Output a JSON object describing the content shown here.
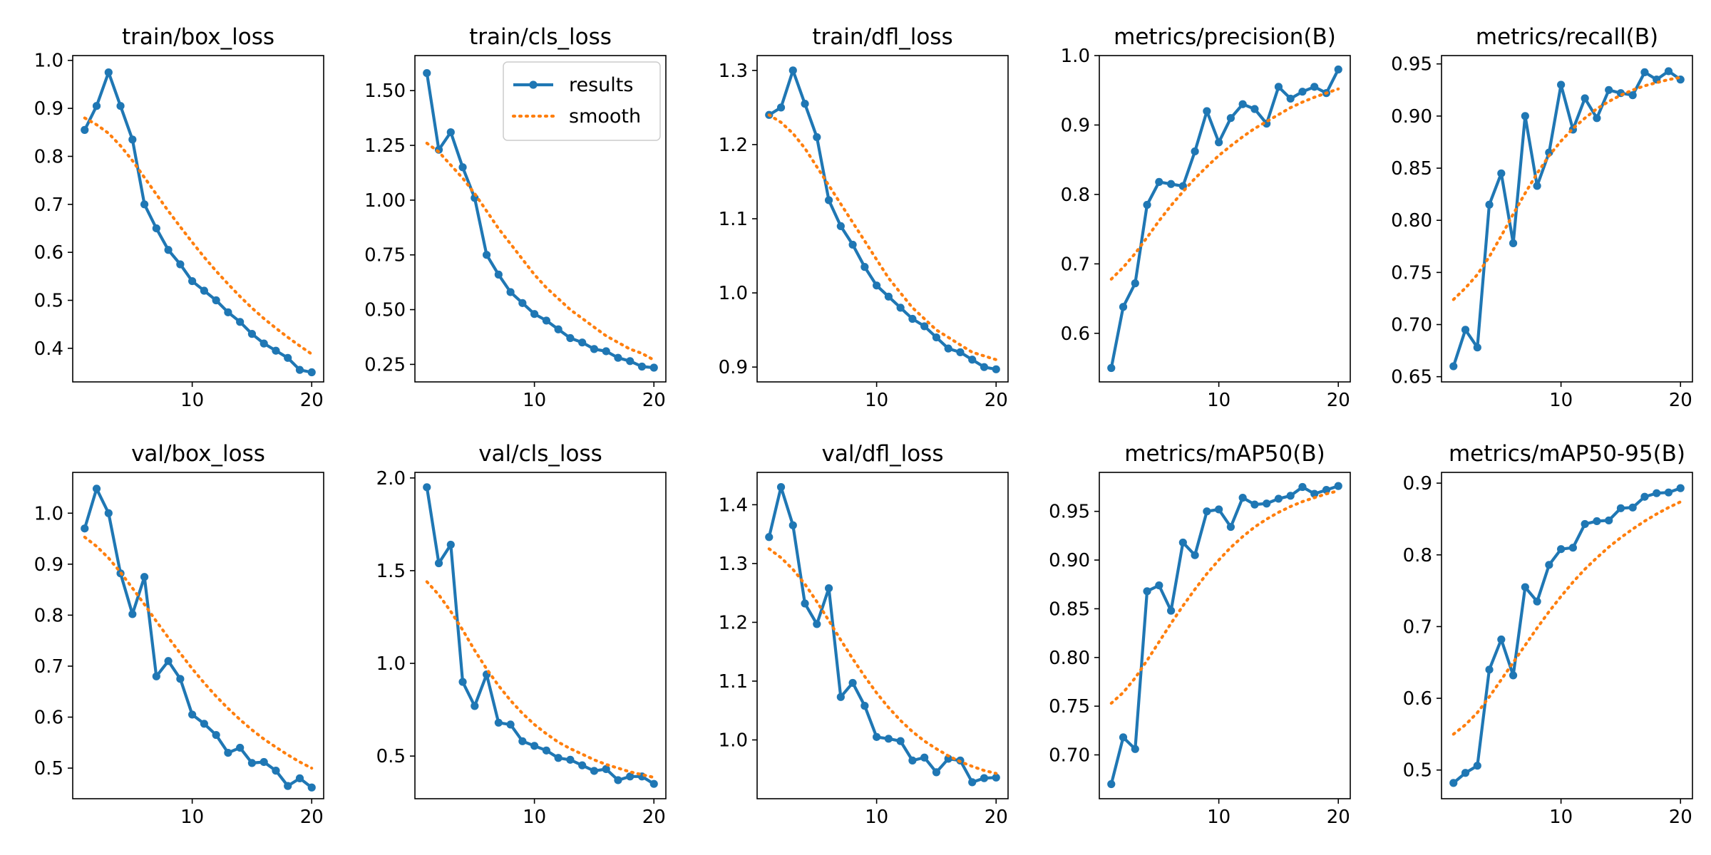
{
  "chart_data": [
    {
      "type": "line",
      "title": "train/box_loss",
      "x": [
        1,
        2,
        3,
        4,
        5,
        6,
        7,
        8,
        9,
        10,
        11,
        12,
        13,
        14,
        15,
        16,
        17,
        18,
        19,
        20
      ],
      "series": [
        {
          "name": "results",
          "values": [
            0.855,
            0.905,
            0.975,
            0.905,
            0.835,
            0.7,
            0.65,
            0.605,
            0.575,
            0.54,
            0.52,
            0.5,
            0.475,
            0.455,
            0.43,
            0.41,
            0.395,
            0.38,
            0.355,
            0.35
          ]
        },
        {
          "name": "smooth",
          "values": [
            0.88,
            0.866,
            0.848,
            0.822,
            0.791,
            0.756,
            0.721,
            0.686,
            0.653,
            0.621,
            0.59,
            0.561,
            0.534,
            0.508,
            0.484,
            0.462,
            0.442,
            0.423,
            0.405,
            0.388
          ]
        }
      ],
      "ylim": [
        0.33,
        1.01
      ],
      "yticks": [
        0.4,
        0.5,
        0.6,
        0.7,
        0.8,
        0.9,
        1.0
      ],
      "ytick_labels": [
        "0.4",
        "0.5",
        "0.6",
        "0.7",
        "0.8",
        "0.9",
        "1.0"
      ],
      "xticks": [
        10,
        20
      ],
      "xtick_labels": [
        "10",
        "20"
      ],
      "xlim": [
        0,
        21
      ]
    },
    {
      "type": "line",
      "title": "train/cls_loss",
      "x": [
        1,
        2,
        3,
        4,
        5,
        6,
        7,
        8,
        9,
        10,
        11,
        12,
        13,
        14,
        15,
        16,
        17,
        18,
        19,
        20
      ],
      "series": [
        {
          "name": "results",
          "values": [
            1.58,
            1.23,
            1.31,
            1.15,
            1.01,
            0.75,
            0.66,
            0.58,
            0.53,
            0.48,
            0.45,
            0.41,
            0.37,
            0.35,
            0.32,
            0.31,
            0.28,
            0.265,
            0.24,
            0.235
          ]
        },
        {
          "name": "smooth",
          "values": [
            1.26,
            1.22,
            1.16,
            1.1,
            1.03,
            0.95,
            0.87,
            0.8,
            0.73,
            0.66,
            0.6,
            0.55,
            0.5,
            0.46,
            0.42,
            0.38,
            0.35,
            0.32,
            0.3,
            0.27
          ]
        }
      ],
      "ylim": [
        0.17,
        1.66
      ],
      "yticks": [
        0.25,
        0.5,
        0.75,
        1.0,
        1.25,
        1.5
      ],
      "ytick_labels": [
        "0.25",
        "0.50",
        "0.75",
        "1.00",
        "1.25",
        "1.50"
      ],
      "xticks": [
        10,
        20
      ],
      "xtick_labels": [
        "10",
        "20"
      ],
      "xlim": [
        0,
        21
      ],
      "legend": {
        "position": "top-right",
        "entries": [
          "results",
          "smooth"
        ]
      }
    },
    {
      "type": "line",
      "title": "train/dfl_loss",
      "x": [
        1,
        2,
        3,
        4,
        5,
        6,
        7,
        8,
        9,
        10,
        11,
        12,
        13,
        14,
        15,
        16,
        17,
        18,
        19,
        20
      ],
      "series": [
        {
          "name": "results",
          "values": [
            1.24,
            1.25,
            1.3,
            1.255,
            1.21,
            1.125,
            1.09,
            1.065,
            1.035,
            1.01,
            0.995,
            0.98,
            0.965,
            0.955,
            0.94,
            0.925,
            0.92,
            0.91,
            0.9,
            0.897
          ]
        },
        {
          "name": "smooth",
          "values": [
            1.24,
            1.23,
            1.215,
            1.195,
            1.17,
            1.145,
            1.12,
            1.095,
            1.07,
            1.045,
            1.02,
            1.0,
            0.98,
            0.965,
            0.95,
            0.94,
            0.93,
            0.92,
            0.915,
            0.91
          ]
        }
      ],
      "ylim": [
        0.88,
        1.32
      ],
      "yticks": [
        0.9,
        1.0,
        1.1,
        1.2,
        1.3
      ],
      "ytick_labels": [
        "0.9",
        "1.0",
        "1.1",
        "1.2",
        "1.3"
      ],
      "xticks": [
        10,
        20
      ],
      "xtick_labels": [
        "10",
        "20"
      ],
      "xlim": [
        0,
        21
      ]
    },
    {
      "type": "line",
      "title": "metrics/precision(B)",
      "x": [
        1,
        2,
        3,
        4,
        5,
        6,
        7,
        8,
        9,
        10,
        11,
        12,
        13,
        14,
        15,
        16,
        17,
        18,
        19,
        20
      ],
      "series": [
        {
          "name": "results",
          "values": [
            0.55,
            0.638,
            0.672,
            0.785,
            0.818,
            0.815,
            0.812,
            0.862,
            0.92,
            0.875,
            0.91,
            0.93,
            0.923,
            0.902,
            0.955,
            0.938,
            0.948,
            0.955,
            0.946,
            0.98
          ]
        },
        {
          "name": "smooth",
          "values": [
            0.678,
            0.695,
            0.715,
            0.738,
            0.762,
            0.784,
            0.804,
            0.823,
            0.84,
            0.856,
            0.87,
            0.883,
            0.895,
            0.905,
            0.915,
            0.925,
            0.933,
            0.94,
            0.946,
            0.952
          ]
        }
      ],
      "ylim": [
        0.53,
        1.0
      ],
      "yticks": [
        0.6,
        0.7,
        0.8,
        0.9,
        1.0
      ],
      "ytick_labels": [
        "0.6",
        "0.7",
        "0.8",
        "0.9",
        "1.0"
      ],
      "xticks": [
        10,
        20
      ],
      "xtick_labels": [
        "10",
        "20"
      ],
      "xlim": [
        0,
        21
      ]
    },
    {
      "type": "line",
      "title": "metrics/recall(B)",
      "x": [
        1,
        2,
        3,
        4,
        5,
        6,
        7,
        8,
        9,
        10,
        11,
        12,
        13,
        14,
        15,
        16,
        17,
        18,
        19,
        20
      ],
      "series": [
        {
          "name": "results",
          "values": [
            0.66,
            0.695,
            0.678,
            0.815,
            0.845,
            0.778,
            0.9,
            0.833,
            0.865,
            0.93,
            0.887,
            0.917,
            0.898,
            0.925,
            0.922,
            0.92,
            0.942,
            0.935,
            0.943,
            0.935
          ]
        },
        {
          "name": "smooth",
          "values": [
            0.724,
            0.735,
            0.748,
            0.765,
            0.785,
            0.806,
            0.826,
            0.845,
            0.862,
            0.876,
            0.888,
            0.898,
            0.907,
            0.914,
            0.92,
            0.925,
            0.929,
            0.932,
            0.935,
            0.937
          ]
        }
      ],
      "ylim": [
        0.645,
        0.958
      ],
      "yticks": [
        0.65,
        0.7,
        0.75,
        0.8,
        0.85,
        0.9,
        0.95
      ],
      "ytick_labels": [
        "0.65",
        "0.70",
        "0.75",
        "0.80",
        "0.85",
        "0.90",
        "0.95"
      ],
      "xticks": [
        10,
        20
      ],
      "xtick_labels": [
        "10",
        "20"
      ],
      "xlim": [
        0,
        21
      ]
    },
    {
      "type": "line",
      "title": "val/box_loss",
      "x": [
        1,
        2,
        3,
        4,
        5,
        6,
        7,
        8,
        9,
        10,
        11,
        12,
        13,
        14,
        15,
        16,
        17,
        18,
        19,
        20
      ],
      "series": [
        {
          "name": "results",
          "values": [
            0.97,
            1.048,
            1.0,
            0.882,
            0.802,
            0.875,
            0.68,
            0.71,
            0.675,
            0.605,
            0.587,
            0.565,
            0.53,
            0.54,
            0.51,
            0.512,
            0.495,
            0.465,
            0.48,
            0.462
          ]
        },
        {
          "name": "smooth",
          "values": [
            0.953,
            0.935,
            0.912,
            0.884,
            0.853,
            0.821,
            0.788,
            0.756,
            0.725,
            0.695,
            0.667,
            0.641,
            0.617,
            0.595,
            0.575,
            0.557,
            0.541,
            0.526,
            0.512,
            0.5
          ]
        }
      ],
      "ylim": [
        0.44,
        1.08
      ],
      "yticks": [
        0.5,
        0.6,
        0.7,
        0.8,
        0.9,
        1.0
      ],
      "ytick_labels": [
        "0.5",
        "0.6",
        "0.7",
        "0.8",
        "0.9",
        "1.0"
      ],
      "xticks": [
        10,
        20
      ],
      "xtick_labels": [
        "10",
        "20"
      ],
      "xlim": [
        0,
        21
      ]
    },
    {
      "type": "line",
      "title": "val/cls_loss",
      "x": [
        1,
        2,
        3,
        4,
        5,
        6,
        7,
        8,
        9,
        10,
        11,
        12,
        13,
        14,
        15,
        16,
        17,
        18,
        19,
        20
      ],
      "series": [
        {
          "name": "results",
          "values": [
            1.95,
            1.54,
            1.64,
            0.9,
            0.77,
            0.94,
            0.68,
            0.67,
            0.58,
            0.555,
            0.53,
            0.49,
            0.48,
            0.45,
            0.42,
            0.43,
            0.37,
            0.39,
            0.39,
            0.35
          ]
        },
        {
          "name": "smooth",
          "values": [
            1.44,
            1.37,
            1.28,
            1.18,
            1.07,
            0.97,
            0.88,
            0.8,
            0.73,
            0.67,
            0.62,
            0.575,
            0.54,
            0.51,
            0.48,
            0.455,
            0.435,
            0.415,
            0.4,
            0.385
          ]
        }
      ],
      "ylim": [
        0.27,
        2.03
      ],
      "yticks": [
        0.5,
        1.0,
        1.5,
        2.0
      ],
      "ytick_labels": [
        "0.5",
        "1.0",
        "1.5",
        "2.0"
      ],
      "xticks": [
        10,
        20
      ],
      "xtick_labels": [
        "10",
        "20"
      ],
      "xlim": [
        0,
        21
      ]
    },
    {
      "type": "line",
      "title": "val/dfl_loss",
      "x": [
        1,
        2,
        3,
        4,
        5,
        6,
        7,
        8,
        9,
        10,
        11,
        12,
        13,
        14,
        15,
        16,
        17,
        18,
        19,
        20
      ],
      "series": [
        {
          "name": "results",
          "values": [
            1.345,
            1.43,
            1.365,
            1.232,
            1.197,
            1.258,
            1.073,
            1.097,
            1.058,
            1.005,
            1.002,
            0.998,
            0.965,
            0.97,
            0.945,
            0.968,
            0.965,
            0.928,
            0.935,
            0.936
          ]
        },
        {
          "name": "smooth",
          "values": [
            1.325,
            1.31,
            1.29,
            1.265,
            1.235,
            1.203,
            1.17,
            1.138,
            1.108,
            1.08,
            1.055,
            1.033,
            1.014,
            0.998,
            0.985,
            0.973,
            0.963,
            0.955,
            0.948,
            0.943
          ]
        }
      ],
      "ylim": [
        0.9,
        1.455
      ],
      "yticks": [
        1.0,
        1.1,
        1.2,
        1.3,
        1.4
      ],
      "ytick_labels": [
        "1.0",
        "1.1",
        "1.2",
        "1.3",
        "1.4"
      ],
      "xticks": [
        10,
        20
      ],
      "xtick_labels": [
        "10",
        "20"
      ],
      "xlim": [
        0,
        21
      ]
    },
    {
      "type": "line",
      "title": "metrics/mAP50(B)",
      "x": [
        1,
        2,
        3,
        4,
        5,
        6,
        7,
        8,
        9,
        10,
        11,
        12,
        13,
        14,
        15,
        16,
        17,
        18,
        19,
        20
      ],
      "series": [
        {
          "name": "results",
          "values": [
            0.67,
            0.718,
            0.706,
            0.868,
            0.874,
            0.848,
            0.918,
            0.905,
            0.95,
            0.952,
            0.934,
            0.964,
            0.957,
            0.958,
            0.963,
            0.966,
            0.975,
            0.968,
            0.972,
            0.976
          ]
        },
        {
          "name": "smooth",
          "values": [
            0.753,
            0.764,
            0.779,
            0.797,
            0.816,
            0.835,
            0.853,
            0.87,
            0.886,
            0.9,
            0.913,
            0.924,
            0.934,
            0.942,
            0.949,
            0.955,
            0.96,
            0.964,
            0.968,
            0.971
          ]
        }
      ],
      "ylim": [
        0.655,
        0.99
      ],
      "yticks": [
        0.7,
        0.75,
        0.8,
        0.85,
        0.9,
        0.95
      ],
      "ytick_labels": [
        "0.70",
        "0.75",
        "0.80",
        "0.85",
        "0.90",
        "0.95"
      ],
      "xticks": [
        10,
        20
      ],
      "xtick_labels": [
        "10",
        "20"
      ],
      "xlim": [
        0,
        21
      ]
    },
    {
      "type": "line",
      "title": "metrics/mAP50-95(B)",
      "x": [
        1,
        2,
        3,
        4,
        5,
        6,
        7,
        8,
        9,
        10,
        11,
        12,
        13,
        14,
        15,
        16,
        17,
        18,
        19,
        20
      ],
      "series": [
        {
          "name": "results",
          "values": [
            0.482,
            0.496,
            0.506,
            0.64,
            0.682,
            0.632,
            0.755,
            0.735,
            0.786,
            0.808,
            0.81,
            0.843,
            0.847,
            0.848,
            0.865,
            0.866,
            0.881,
            0.886,
            0.887,
            0.893
          ]
        },
        {
          "name": "smooth",
          "values": [
            0.55,
            0.563,
            0.58,
            0.602,
            0.626,
            0.65,
            0.674,
            0.698,
            0.721,
            0.742,
            0.762,
            0.78,
            0.796,
            0.811,
            0.824,
            0.836,
            0.847,
            0.857,
            0.866,
            0.874
          ]
        }
      ],
      "ylim": [
        0.46,
        0.915
      ],
      "yticks": [
        0.5,
        0.6,
        0.7,
        0.8,
        0.9
      ],
      "ytick_labels": [
        "0.5",
        "0.6",
        "0.7",
        "0.8",
        "0.9"
      ],
      "xticks": [
        10,
        20
      ],
      "xtick_labels": [
        "10",
        "20"
      ],
      "xlim": [
        0,
        21
      ]
    }
  ],
  "colors": {
    "results": "#1f77b4",
    "smooth": "#ff7f0e",
    "axes": "#000000",
    "background": "#ffffff"
  }
}
